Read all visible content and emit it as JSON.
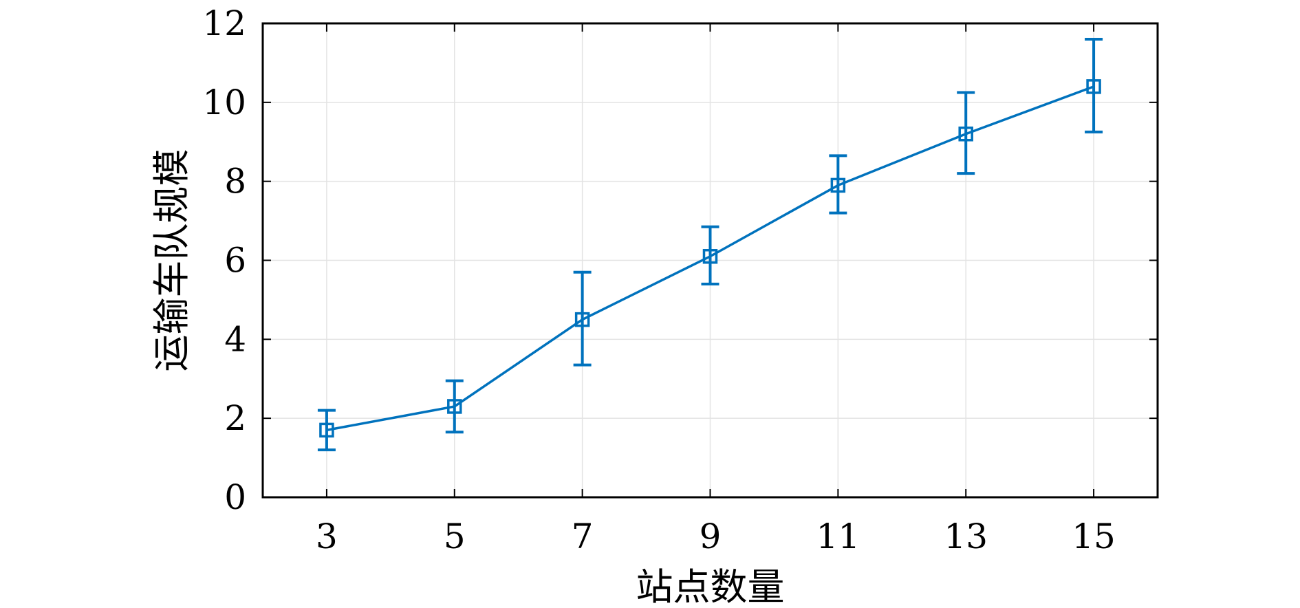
{
  "chart_data": {
    "type": "line",
    "xlabel": "站点数量",
    "ylabel": "运输车队规模",
    "x": [
      3,
      5,
      7,
      9,
      11,
      13,
      15
    ],
    "xlim": [
      2,
      16
    ],
    "ylim": [
      0,
      12
    ],
    "xticks": [
      3,
      5,
      7,
      9,
      11,
      13,
      15
    ],
    "yticks": [
      0,
      2,
      4,
      6,
      8,
      10,
      12
    ],
    "grid": true,
    "series": [
      {
        "values": [
          1.7,
          2.3,
          4.5,
          6.1,
          7.9,
          9.2,
          10.4
        ],
        "error_low": [
          1.2,
          1.65,
          3.35,
          5.4,
          7.2,
          8.2,
          9.25
        ],
        "error_high": [
          2.2,
          2.95,
          5.7,
          6.85,
          8.65,
          10.25,
          11.6
        ],
        "marker": "square",
        "color": "#0072bd"
      }
    ]
  }
}
